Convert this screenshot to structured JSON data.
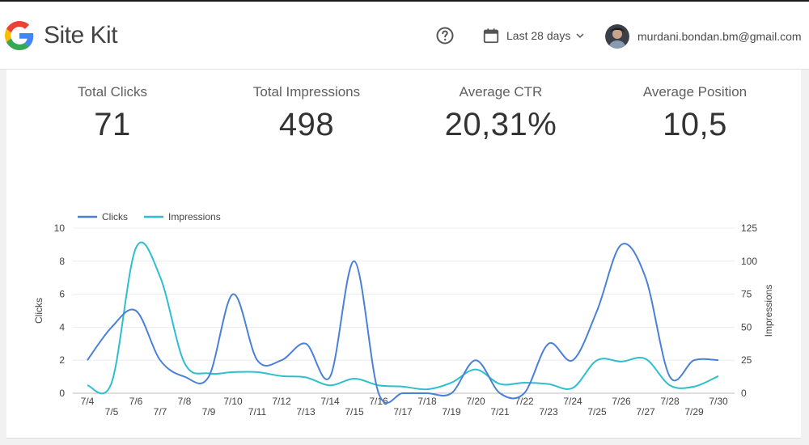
{
  "header": {
    "brand": "Site Kit",
    "date_range": "Last 28 days",
    "user_email": "murdani.bondan.bm@gmail.com"
  },
  "stats": [
    {
      "label": "Total Clicks",
      "value": "71"
    },
    {
      "label": "Total Impressions",
      "value": "498"
    },
    {
      "label": "Average CTR",
      "value": "20,31%"
    },
    {
      "label": "Average Position",
      "value": "10,5"
    }
  ],
  "colors": {
    "clicks": "#4a80d8",
    "impressions": "#2ebfce",
    "google_blue": "#4285F4",
    "google_red": "#EA4335",
    "google_yellow": "#FBBC05",
    "google_green": "#34A853"
  },
  "chart_data": {
    "type": "line",
    "x": [
      "7/4",
      "7/5",
      "7/6",
      "7/7",
      "7/8",
      "7/9",
      "7/10",
      "7/11",
      "7/12",
      "7/13",
      "7/14",
      "7/15",
      "7/16",
      "7/17",
      "7/18",
      "7/19",
      "7/20",
      "7/21",
      "7/22",
      "7/23",
      "7/24",
      "7/25",
      "7/26",
      "7/27",
      "7/28",
      "7/29",
      "7/30"
    ],
    "series": [
      {
        "name": "Clicks",
        "axis": "left",
        "values": [
          2,
          4,
          5,
          2,
          1,
          1,
          6,
          2,
          2,
          3,
          1,
          8,
          0,
          0,
          0,
          0,
          2,
          0,
          0,
          3,
          2,
          5,
          9,
          7,
          1,
          2,
          2
        ]
      },
      {
        "name": "Impressions",
        "axis": "right",
        "values": [
          6,
          8,
          110,
          88,
          23,
          15,
          16,
          16,
          13,
          12,
          6,
          11,
          6,
          5,
          3,
          8,
          18,
          7,
          8,
          7,
          4,
          25,
          24,
          26,
          6,
          5,
          13
        ]
      }
    ],
    "ylabel": "Clicks",
    "y2label": "Impressions",
    "ylim": [
      0,
      10
    ],
    "y2lim": [
      0,
      125
    ],
    "yticks": [
      0,
      2,
      4,
      6,
      8,
      10
    ],
    "y2ticks": [
      0,
      25,
      50,
      75,
      100,
      125
    ],
    "legend_position": "top-left",
    "grid": true
  }
}
